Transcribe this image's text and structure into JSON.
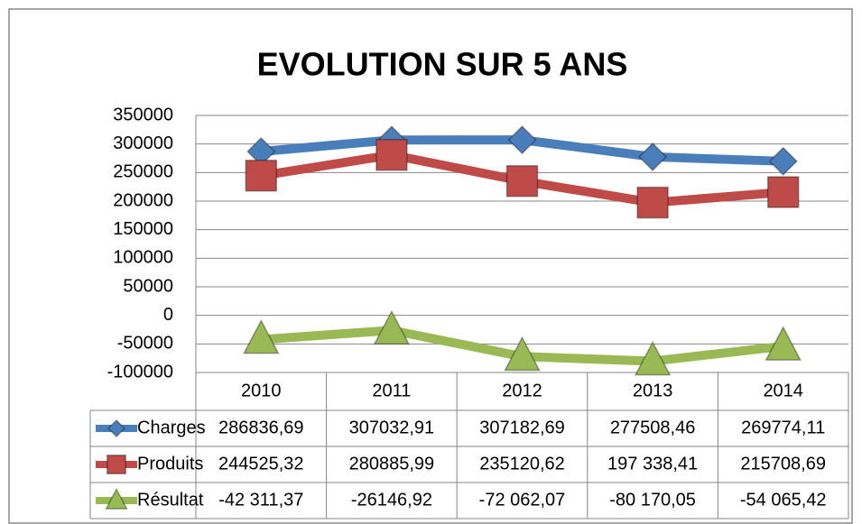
{
  "chart_data": {
    "type": "line",
    "title": "EVOLUTION SUR 5 ANS",
    "categories": [
      "2010",
      "2011",
      "2012",
      "2013",
      "2014"
    ],
    "ylim": [
      -100000,
      350000
    ],
    "yticks": [
      -100000,
      -50000,
      0,
      50000,
      100000,
      150000,
      200000,
      250000,
      300000,
      350000
    ],
    "grid": true,
    "series": [
      {
        "name": "Charges",
        "color": "#4a7ebb",
        "marker": "diamond",
        "values": [
          286836.69,
          307032.91,
          307182.69,
          277508.46,
          269774.11
        ],
        "value_labels": [
          "286836,69",
          "307032,91",
          "307182,69",
          "277508,46",
          "269774,11"
        ]
      },
      {
        "name": "Produits",
        "color": "#be4b48",
        "marker": "square",
        "values": [
          244525.32,
          280885.99,
          235120.62,
          197338.41,
          215708.69
        ],
        "value_labels": [
          "244525,32",
          "280885,99",
          "235120,62",
          "197 338,41",
          "215708,69"
        ]
      },
      {
        "name": "Résultat",
        "color": "#98b954",
        "marker": "triangle",
        "values": [
          -42311.37,
          -26146.92,
          -72062.07,
          -80170.05,
          -54065.42
        ],
        "value_labels": [
          "-42 311,37",
          "-26146,92",
          "-72 062,07",
          "-80 170,05",
          "-54 065,42"
        ]
      }
    ]
  }
}
